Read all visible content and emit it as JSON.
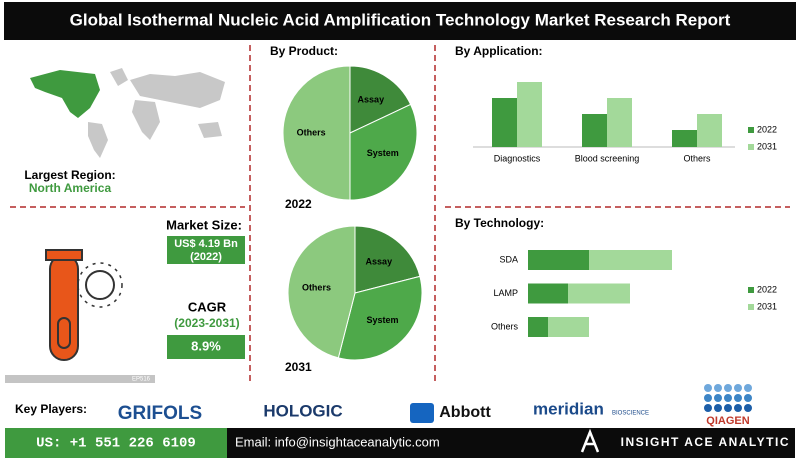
{
  "header": {
    "title": "Global Isothermal Nucleic Acid Amplification Technology Market Research Report"
  },
  "region": {
    "label": "Largest Region:",
    "value": "North America"
  },
  "market_size": {
    "label": "Market Size:",
    "value": "US$ 4.19 Bn",
    "year": "(2022)"
  },
  "cagr": {
    "label": "CAGR",
    "period": "(2023-2031)",
    "value": "8.9%"
  },
  "code": "EP516",
  "key_players": {
    "label": "Key Players:",
    "names": [
      "GRIFOLS",
      "HOLOGIC",
      "Abbott",
      "meridian",
      "BIOSCIENCE",
      "QIAGEN"
    ]
  },
  "footer": {
    "phone": "US: +1 551 226 6109",
    "email": "Email: info@insightaceanalytic.com",
    "brand": "INSIGHT ACE ANALYTIC"
  },
  "chart_data": [
    {
      "type": "pie",
      "title": "By Product:",
      "subtitle": "2022",
      "categories": [
        "Assay",
        "System",
        "Others"
      ],
      "values": [
        18,
        32,
        50
      ],
      "colors": [
        "#3f8a3a",
        "#4ea94a",
        "#8cc97e"
      ]
    },
    {
      "type": "pie",
      "subtitle": "2031",
      "categories": [
        "Assay",
        "System",
        "Others"
      ],
      "values": [
        21,
        33,
        46
      ],
      "colors": [
        "#3f8a3a",
        "#4ea94a",
        "#8cc97e"
      ]
    },
    {
      "type": "bar",
      "title": "By Application:",
      "categories": [
        "Diagnostics",
        "Blood screening",
        "Others"
      ],
      "legend": "right",
      "series": [
        {
          "name": "2022",
          "color": "#3f9a3f",
          "values": [
            49,
            33,
            17
          ]
        },
        {
          "name": "2031",
          "color": "#a3d99a",
          "values": [
            65,
            49,
            33
          ]
        }
      ]
    },
    {
      "type": "barh_stacked",
      "title": "By Technology:",
      "categories": [
        "SDA",
        "LAMP",
        "Others"
      ],
      "legend": "right",
      "series": [
        {
          "name": "2022",
          "color": "#3f9a3f",
          "values": [
            61,
            40,
            20
          ]
        },
        {
          "name": "2031",
          "color": "#a3d99a",
          "values": [
            83,
            62,
            41
          ]
        }
      ]
    }
  ]
}
